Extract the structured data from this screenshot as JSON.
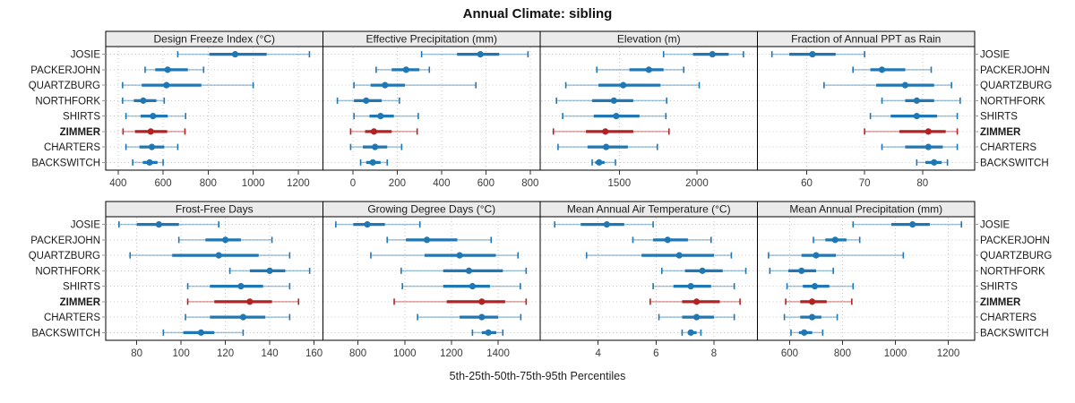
{
  "title": "Annual Climate: sibling",
  "xlabel": "5th-25th-50th-75th-95th Percentiles",
  "colors": {
    "series": "#1F77B4",
    "highlight": "#B22222",
    "strip_bg": "#EBEBEB",
    "panel_border": "#000000",
    "grid": "#C8C8C8",
    "tick": "#333333",
    "tick_label": "#3A3A3A",
    "station_label": "#1A1A1A",
    "background": "#FFFFFF"
  },
  "chart_data": {
    "type": "scatter",
    "subtype": "trellis-percentile-dotplot",
    "title": "Annual Climate: sibling",
    "xlabel": "5th-25th-50th-75th-95th Percentiles",
    "percentiles": [
      5,
      25,
      50,
      75,
      95
    ],
    "rows": 2,
    "cols": 4,
    "grid": "dotted",
    "legend_position": "none",
    "row_labels_both_sides": true,
    "categories": [
      "JOSIE",
      "PACKERJOHN",
      "QUARTZBURG",
      "NORTHFORK",
      "SHIRTS",
      "ZIMMER",
      "CHARTERS",
      "BACKSWITCH"
    ],
    "highlight_category": "ZIMMER",
    "panels": [
      {
        "title": "Design Freeze Index (°C)",
        "xlim": [
          345,
          1310
        ],
        "xticks": [
          400,
          600,
          800,
          1000,
          1200
        ],
        "values": {
          "JOSIE": [
            665,
            805,
            920,
            1060,
            1250
          ],
          "PACKERJOHN": [
            520,
            565,
            620,
            710,
            780
          ],
          "QUARTZBURG": [
            420,
            505,
            615,
            770,
            1000
          ],
          "NORTHFORK": [
            420,
            470,
            512,
            570,
            605
          ],
          "SHIRTS": [
            435,
            500,
            555,
            620,
            700
          ],
          "ZIMMER": [
            422,
            475,
            545,
            618,
            697
          ],
          "CHARTERS": [
            435,
            495,
            550,
            605,
            665
          ],
          "BACKSWITCH": [
            465,
            510,
            540,
            575,
            600
          ]
        }
      },
      {
        "title": "Effective Precipitation (mm)",
        "xlim": [
          -135,
          845
        ],
        "xticks": [
          0,
          200,
          400,
          600,
          800
        ],
        "values": {
          "JOSIE": [
            310,
            470,
            575,
            660,
            790
          ],
          "PACKERJOHN": [
            105,
            175,
            240,
            300,
            345
          ],
          "QUARTZBURG": [
            5,
            80,
            145,
            235,
            555
          ],
          "NORTHFORK": [
            -70,
            5,
            60,
            130,
            210
          ],
          "SHIRTS": [
            5,
            75,
            125,
            185,
            295
          ],
          "ZIMMER": [
            -10,
            55,
            95,
            175,
            290
          ],
          "CHARTERS": [
            -10,
            45,
            100,
            155,
            220
          ],
          "BACKSWITCH": [
            35,
            60,
            90,
            125,
            155
          ]
        }
      },
      {
        "title": "Elevation (m)",
        "xlim": [
          990,
          2390
        ],
        "xticks": [
          1500,
          2000
        ],
        "values": {
          "JOSIE": [
            1785,
            1975,
            2100,
            2205,
            2300
          ],
          "PACKERJOHN": [
            1355,
            1565,
            1690,
            1785,
            1915
          ],
          "QUARTZBURG": [
            1155,
            1365,
            1525,
            1765,
            2015
          ],
          "NORTHFORK": [
            1095,
            1325,
            1465,
            1590,
            1805
          ],
          "SHIRTS": [
            1135,
            1335,
            1480,
            1630,
            1800
          ],
          "ZIMMER": [
            1075,
            1285,
            1410,
            1590,
            1820
          ],
          "CHARTERS": [
            1105,
            1295,
            1415,
            1555,
            1745
          ],
          "BACKSWITCH": [
            1325,
            1345,
            1370,
            1405,
            1475
          ]
        }
      },
      {
        "title": "Fraction of Annual PPT as Rain",
        "xlim": [
          51.5,
          89
        ],
        "xticks": [
          60,
          70,
          80
        ],
        "values": {
          "JOSIE": [
            54,
            57,
            61,
            65,
            70
          ],
          "PACKERJOHN": [
            68,
            71,
            73,
            77,
            81.5
          ],
          "QUARTZBURG": [
            63,
            72,
            77,
            82,
            85
          ],
          "NORTHFORK": [
            73,
            77,
            79,
            82,
            86.5
          ],
          "SHIRTS": [
            71,
            74.5,
            79,
            82.5,
            86
          ],
          "ZIMMER": [
            70,
            76,
            81,
            84,
            86
          ],
          "CHARTERS": [
            73,
            77,
            81,
            83.5,
            86
          ],
          "BACKSWITCH": [
            79,
            80.5,
            82,
            83.3,
            84.3
          ]
        }
      },
      {
        "title": "Frost-Free Days",
        "xlim": [
          66,
          164
        ],
        "xticks": [
          80,
          100,
          120,
          140,
          160
        ],
        "values": {
          "JOSIE": [
            72,
            80,
            90,
            99,
            117
          ],
          "PACKERJOHN": [
            99,
            111,
            120,
            127,
            141
          ],
          "QUARTZBURG": [
            77,
            96,
            117,
            135,
            149
          ],
          "NORTHFORK": [
            122,
            131,
            140,
            147,
            158
          ],
          "SHIRTS": [
            103,
            113,
            127,
            137,
            149
          ],
          "ZIMMER": [
            103,
            115,
            131,
            141,
            153
          ],
          "CHARTERS": [
            102,
            113,
            128,
            138,
            149
          ],
          "BACKSWITCH": [
            92,
            101,
            109,
            115,
            128
          ]
        }
      },
      {
        "title": "Growing Degree Days (°C)",
        "xlim": [
          650,
          1580
        ],
        "xticks": [
          800,
          1000,
          1200,
          1400
        ],
        "values": {
          "JOSIE": [
            705,
            780,
            840,
            915,
            1065
          ],
          "PACKERJOHN": [
            925,
            1005,
            1095,
            1225,
            1370
          ],
          "QUARTZBURG": [
            855,
            1085,
            1235,
            1390,
            1485
          ],
          "NORTHFORK": [
            985,
            1165,
            1275,
            1420,
            1520
          ],
          "SHIRTS": [
            990,
            1165,
            1290,
            1365,
            1495
          ],
          "ZIMMER": [
            955,
            1180,
            1330,
            1430,
            1520
          ],
          "CHARTERS": [
            1055,
            1235,
            1330,
            1400,
            1497
          ],
          "BACKSWITCH": [
            1290,
            1330,
            1358,
            1392,
            1420
          ]
        }
      },
      {
        "title": "Mean Annual Air Temperature (°C)",
        "xlim": [
          2.0,
          9.5
        ],
        "xticks": [
          4,
          6,
          8
        ],
        "values": {
          "JOSIE": [
            2.5,
            3.4,
            4.3,
            4.9,
            5.9
          ],
          "PACKERJOHN": [
            5.2,
            5.9,
            6.4,
            7.1,
            7.9
          ],
          "QUARTZBURG": [
            3.6,
            5.5,
            6.8,
            8.0,
            8.6
          ],
          "NORTHFORK": [
            6.2,
            7.0,
            7.6,
            8.3,
            9.1
          ],
          "SHIRTS": [
            5.9,
            6.6,
            7.2,
            7.9,
            8.7
          ],
          "ZIMMER": [
            5.8,
            6.9,
            7.4,
            8.2,
            8.9
          ],
          "CHARTERS": [
            6.1,
            6.9,
            7.4,
            8.0,
            8.7
          ],
          "BACKSWITCH": [
            6.9,
            7.1,
            7.2,
            7.4,
            7.55
          ]
        }
      },
      {
        "title": "Mean Annual Precipitation (mm)",
        "xlim": [
          478,
          1300
        ],
        "xticks": [
          600,
          800,
          1000,
          1200
        ],
        "values": {
          "JOSIE": [
            840,
            985,
            1065,
            1130,
            1250
          ],
          "PACKERJOHN": [
            690,
            735,
            772,
            815,
            865
          ],
          "QUARTZBURG": [
            520,
            645,
            700,
            775,
            1030
          ],
          "NORTHFORK": [
            525,
            595,
            645,
            700,
            765
          ],
          "SHIRTS": [
            590,
            650,
            695,
            750,
            840
          ],
          "ZIMMER": [
            585,
            640,
            685,
            740,
            835
          ],
          "CHARTERS": [
            580,
            640,
            685,
            720,
            780
          ],
          "BACKSWITCH": [
            605,
            635,
            655,
            685,
            725
          ]
        }
      }
    ]
  }
}
